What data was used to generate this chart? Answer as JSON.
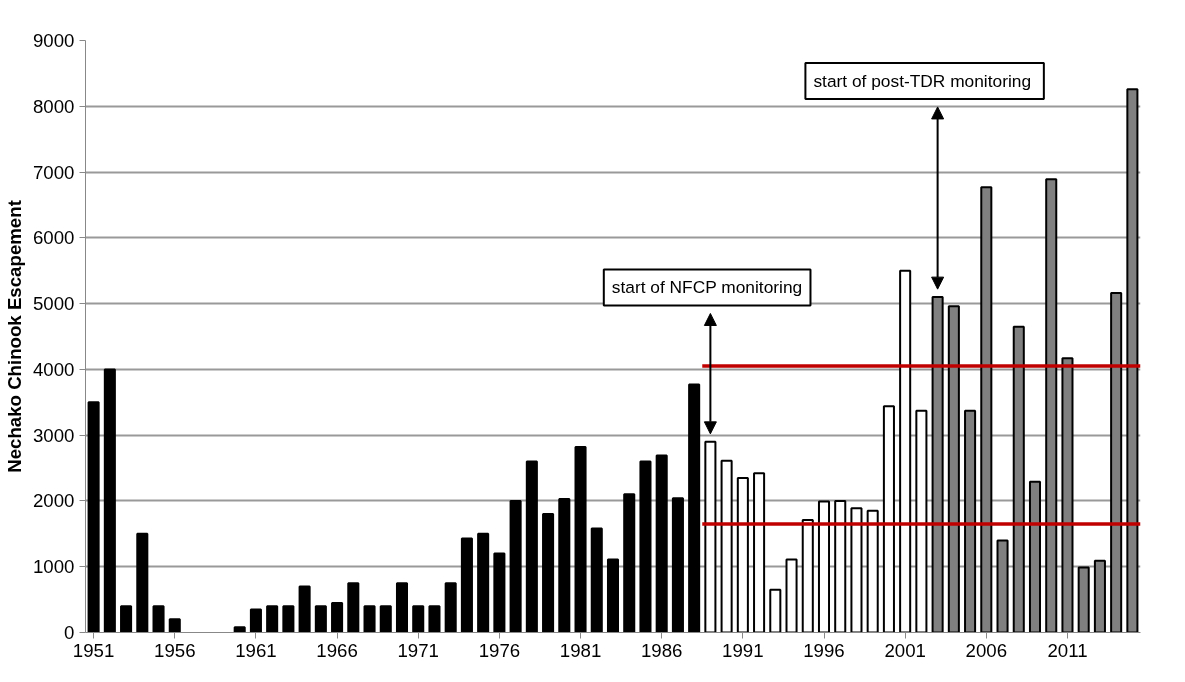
{
  "chart_data": {
    "type": "bar",
    "ylabel": "Nechako Chinook Escapement",
    "xlim": [
      1950.5,
      2015.5
    ],
    "xticks": [
      1951,
      1956,
      1961,
      1966,
      1971,
      1976,
      1981,
      1986,
      1991,
      1996,
      2001,
      2006,
      2011
    ],
    "ylim": [
      0,
      9000
    ],
    "yticks": [
      0,
      1000,
      2000,
      3000,
      4000,
      5000,
      6000,
      7000,
      8000,
      9000
    ],
    "grid": "y",
    "series": [
      {
        "color": "#000000",
        "x": [
          1951,
          1952,
          1953,
          1954,
          1955,
          1956,
          1957,
          1958,
          1959,
          1960,
          1961,
          1962,
          1963,
          1964,
          1965,
          1966,
          1967,
          1968,
          1969,
          1970,
          1971,
          1972,
          1973,
          1974,
          1975,
          1976,
          1977,
          1978,
          1979,
          1980,
          1981,
          1982,
          1983,
          1984,
          1985,
          1986,
          1987,
          1988
        ],
        "values": [
          3500,
          4000,
          400,
          1500,
          400,
          200,
          null,
          null,
          null,
          80,
          350,
          400,
          400,
          700,
          400,
          450,
          750,
          400,
          400,
          750,
          400,
          400,
          750,
          1430,
          1500,
          1200,
          2000,
          2600,
          1800,
          2030,
          2820,
          1580,
          1110,
          2100,
          2600,
          2690,
          2040,
          3770
        ]
      },
      {
        "color": "#ffffff",
        "x": [
          1989,
          1990,
          1991,
          1992,
          1993,
          1994,
          1995,
          1996,
          1997,
          1998,
          1999,
          2000,
          2001,
          2002
        ],
        "values": [
          2900,
          2610,
          2350,
          2420,
          650,
          1110,
          1710,
          1990,
          2000,
          1890,
          1850,
          3440,
          5500,
          3370
        ]
      },
      {
        "color": "#808080",
        "x": [
          2003,
          2004,
          2005,
          2006,
          2007,
          2008,
          2009,
          2010,
          2011,
          2012,
          2013,
          2014,
          2015
        ],
        "values": [
          5100,
          4960,
          3370,
          6770,
          1400,
          4650,
          2290,
          6890,
          4170,
          990,
          1090,
          5160,
          8260
        ]
      },
      {
        "type": "line",
        "color": "#c00000",
        "x": [
          1988.5,
          2015.5
        ],
        "values": [
          4050,
          4050
        ]
      },
      {
        "type": "line",
        "color": "#c00000",
        "x": [
          1988.5,
          2015.5
        ],
        "values": [
          1650,
          1650
        ]
      }
    ],
    "annotations": [
      {
        "text": "start of NFCP monitoring",
        "x": 1989,
        "y": 2900
      },
      {
        "text": "start of post-TDR  monitoring",
        "x": 2003,
        "y": 5100
      }
    ]
  }
}
